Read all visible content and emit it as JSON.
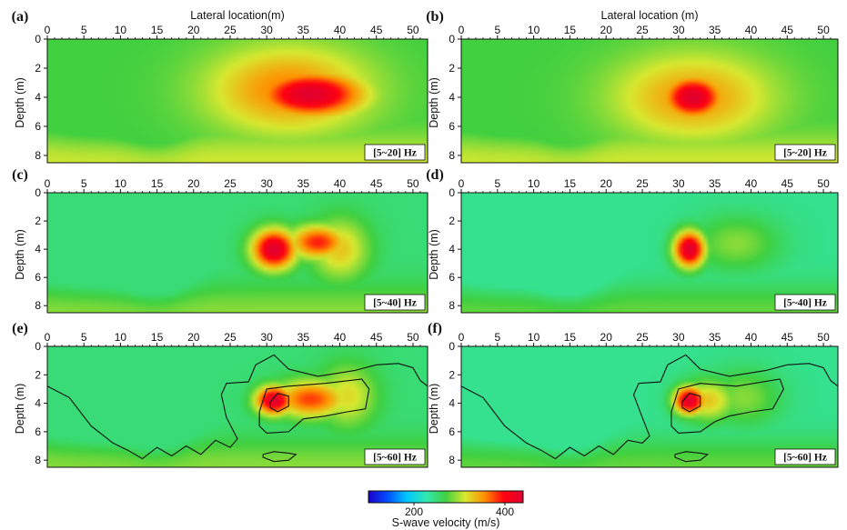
{
  "chart_data": {
    "type": "heatmap",
    "x_label": "Lateral location(m)",
    "x_label_right": "Lateral location (m)",
    "y_label": "Depth (m)",
    "xlim": [
      0,
      52
    ],
    "ylim": [
      0,
      8.5
    ],
    "x_ticks": [
      0,
      5,
      10,
      15,
      20,
      25,
      30,
      35,
      40,
      45,
      50
    ],
    "y_ticks": [
      0,
      2,
      4,
      6,
      8
    ],
    "colorbar": {
      "label": "S-wave velocity (m/s)",
      "range": [
        100,
        440
      ],
      "ticks": [
        200,
        400
      ],
      "colors": [
        "#1a00c8",
        "#0050ff",
        "#00c8ff",
        "#30e8b0",
        "#40d040",
        "#d8e830",
        "#ff9000",
        "#ff0010",
        "#e00030"
      ]
    },
    "panels": [
      {
        "letter": "(a)",
        "band": "[5~20] Hz",
        "background_velocity": 270,
        "anomalies": [
          {
            "x": 36,
            "z": 3.8,
            "peak_velocity": 440,
            "radius_x": 7,
            "radius_z": 1.5
          },
          {
            "x": 33,
            "z": 3.5,
            "peak_velocity": 360,
            "radius_x": 11,
            "radius_z": 3
          }
        ],
        "contours": []
      },
      {
        "letter": "(b)",
        "band": "[5~20] Hz",
        "background_velocity": 270,
        "anomalies": [
          {
            "x": 32,
            "z": 4.0,
            "peak_velocity": 440,
            "radius_x": 4,
            "radius_z": 1.4
          },
          {
            "x": 32,
            "z": 4.0,
            "peak_velocity": 350,
            "radius_x": 11,
            "radius_z": 3
          }
        ],
        "contours": []
      },
      {
        "letter": "(c)",
        "band": "[5~40] Hz",
        "background_velocity": 250,
        "anomalies": [
          {
            "x": 31,
            "z": 4.0,
            "peak_velocity": 440,
            "radius_x": 3,
            "radius_z": 1.4
          },
          {
            "x": 37,
            "z": 3.5,
            "peak_velocity": 390,
            "radius_x": 4,
            "radius_z": 1.2
          },
          {
            "x": 40,
            "z": 4.0,
            "peak_velocity": 330,
            "radius_x": 4,
            "radius_z": 2.2
          }
        ],
        "contours": []
      },
      {
        "letter": "(d)",
        "band": "[5~40] Hz",
        "background_velocity": 240,
        "anomalies": [
          {
            "x": 31.5,
            "z": 4.0,
            "peak_velocity": 440,
            "radius_x": 2.2,
            "radius_z": 1.3
          },
          {
            "x": 38,
            "z": 3.6,
            "peak_velocity": 290,
            "radius_x": 6,
            "radius_z": 2
          }
        ],
        "contours": []
      },
      {
        "letter": "(e)",
        "band": "[5~60] Hz",
        "background_velocity": 250,
        "anomalies": [
          {
            "x": 31,
            "z": 3.8,
            "peak_velocity": 440,
            "radius_x": 2.5,
            "radius_z": 1.0
          },
          {
            "x": 36,
            "z": 3.7,
            "peak_velocity": 380,
            "radius_x": 5,
            "radius_z": 1.3
          },
          {
            "x": 41,
            "z": 3.5,
            "peak_velocity": 320,
            "radius_x": 4,
            "radius_z": 2.2
          }
        ],
        "contours": [
          [
            [
              0,
              2.8
            ],
            [
              3,
              3.6
            ],
            [
              6,
              5.6
            ],
            [
              9,
              6.8
            ],
            [
              11,
              7.3
            ],
            [
              13,
              7.9
            ],
            [
              15,
              7.1
            ],
            [
              17,
              7.7
            ],
            [
              19,
              7.0
            ],
            [
              21,
              7.6
            ],
            [
              23,
              6.6
            ],
            [
              25,
              7.1
            ],
            [
              26,
              6.5
            ],
            [
              24.5,
              5.0
            ],
            [
              23.8,
              3.4
            ],
            [
              24.5,
              2.6
            ],
            [
              27.5,
              2.5
            ],
            [
              28.5,
              1.3
            ],
            [
              31,
              0.6
            ],
            [
              33,
              1.6
            ],
            [
              37,
              2.1
            ],
            [
              42,
              1.7
            ],
            [
              45,
              1.3
            ],
            [
              48,
              1.2
            ],
            [
              50,
              1.5
            ],
            [
              51,
              2.4
            ],
            [
              52,
              2.8
            ]
          ],
          [
            [
              29,
              4.6
            ],
            [
              30,
              3.0
            ],
            [
              33,
              2.8
            ],
            [
              38,
              2.6
            ],
            [
              43,
              2.3
            ],
            [
              44,
              3.0
            ],
            [
              43.5,
              4.4
            ],
            [
              41,
              4.6
            ],
            [
              38,
              4.9
            ],
            [
              35,
              5.1
            ],
            [
              33,
              6.0
            ],
            [
              30,
              6.1
            ],
            [
              29,
              5.6
            ],
            [
              29,
              4.6
            ]
          ],
          [
            [
              30.5,
              3.9
            ],
            [
              31.5,
              3.3
            ],
            [
              33,
              3.5
            ],
            [
              33,
              4.2
            ],
            [
              31.5,
              4.6
            ],
            [
              30.5,
              4.3
            ],
            [
              30.5,
              3.9
            ]
          ],
          [
            [
              29.5,
              7.6
            ],
            [
              31,
              7.4
            ],
            [
              33,
              7.5
            ],
            [
              34,
              7.6
            ],
            [
              33,
              8.0
            ],
            [
              31,
              8.1
            ],
            [
              29.5,
              7.8
            ],
            [
              29.5,
              7.6
            ]
          ]
        ]
      },
      {
        "letter": "(f)",
        "band": "[5~60] Hz",
        "background_velocity": 240,
        "anomalies": [
          {
            "x": 31.5,
            "z": 3.8,
            "peak_velocity": 440,
            "radius_x": 2.2,
            "radius_z": 1.0
          },
          {
            "x": 34,
            "z": 3.8,
            "peak_velocity": 330,
            "radius_x": 4,
            "radius_z": 1.5
          },
          {
            "x": 39,
            "z": 3.6,
            "peak_velocity": 290,
            "radius_x": 5,
            "radius_z": 2
          }
        ],
        "contours": [
          [
            [
              0,
              2.8
            ],
            [
              3,
              3.6
            ],
            [
              6,
              5.6
            ],
            [
              9,
              6.8
            ],
            [
              11,
              7.3
            ],
            [
              13,
              7.9
            ],
            [
              15,
              7.1
            ],
            [
              17,
              7.7
            ],
            [
              19,
              7.0
            ],
            [
              21,
              7.6
            ],
            [
              23,
              6.6
            ],
            [
              25,
              6.8
            ],
            [
              26,
              6.3
            ],
            [
              25,
              5.0
            ],
            [
              23.8,
              3.4
            ],
            [
              24.5,
              2.6
            ],
            [
              27.5,
              2.5
            ],
            [
              28.5,
              1.3
            ],
            [
              31,
              0.6
            ],
            [
              33,
              1.6
            ],
            [
              37,
              2.1
            ],
            [
              42,
              1.7
            ],
            [
              45,
              1.3
            ],
            [
              48,
              1.2
            ],
            [
              50,
              1.5
            ],
            [
              51,
              2.4
            ],
            [
              52,
              2.8
            ]
          ],
          [
            [
              29,
              4.6
            ],
            [
              30,
              3.0
            ],
            [
              33,
              2.6
            ],
            [
              38,
              2.8
            ],
            [
              44,
              2.3
            ],
            [
              44.5,
              3.0
            ],
            [
              43,
              4.4
            ],
            [
              40,
              4.6
            ],
            [
              37,
              4.9
            ],
            [
              35,
              5.3
            ],
            [
              33,
              6.0
            ],
            [
              30,
              6.1
            ],
            [
              29,
              5.6
            ],
            [
              29,
              4.6
            ]
          ],
          [
            [
              30.5,
              3.9
            ],
            [
              31.5,
              3.3
            ],
            [
              33,
              3.5
            ],
            [
              33,
              4.2
            ],
            [
              31.5,
              4.6
            ],
            [
              30.5,
              4.3
            ],
            [
              30.5,
              3.9
            ]
          ],
          [
            [
              29.5,
              7.6
            ],
            [
              31,
              7.4
            ],
            [
              33,
              7.5
            ],
            [
              34,
              7.6
            ],
            [
              33,
              8.0
            ],
            [
              31,
              8.1
            ],
            [
              29.5,
              7.8
            ],
            [
              29.5,
              7.6
            ]
          ]
        ]
      }
    ]
  }
}
